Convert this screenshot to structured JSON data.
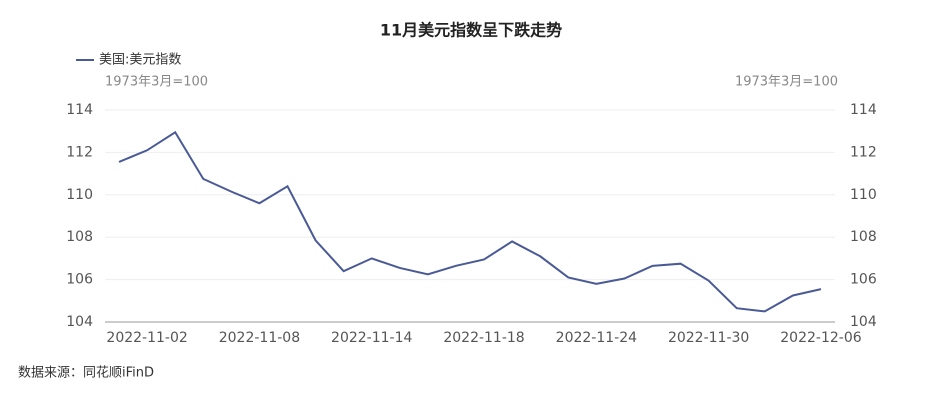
{
  "chart_data": {
    "type": "line",
    "title": "11月美元指数呈下跌走势",
    "left_axis_note": "1973年3月=100",
    "right_axis_note": "1973年3月=100",
    "source": "数据来源：同花顺iFinD",
    "categories": [
      null,
      "2022-11-02",
      null,
      null,
      null,
      "2022-11-08",
      null,
      null,
      null,
      "2022-11-14",
      null,
      null,
      null,
      "2022-11-18",
      null,
      null,
      null,
      "2022-11-24",
      null,
      null,
      null,
      "2022-11-30",
      null,
      null,
      null,
      "2022-12-06"
    ],
    "series": [
      {
        "name": "美国:美元指数",
        "color": "#4a5a96",
        "values": [
          111.55,
          112.1,
          112.95,
          110.75,
          110.15,
          109.6,
          110.4,
          107.85,
          106.4,
          107.0,
          106.55,
          106.25,
          106.65,
          106.95,
          107.8,
          107.1,
          106.1,
          105.8,
          106.05,
          106.65,
          106.75,
          105.95,
          104.65,
          104.5,
          105.25,
          105.55
        ]
      }
    ],
    "ylim": [
      104,
      114
    ],
    "yticks": [
      104,
      106,
      108,
      110,
      112,
      114
    ],
    "y2lim": [
      104,
      114
    ],
    "y2ticks": [
      104,
      106,
      108,
      110,
      112,
      114
    ],
    "grid": true,
    "legend": "top-left"
  }
}
